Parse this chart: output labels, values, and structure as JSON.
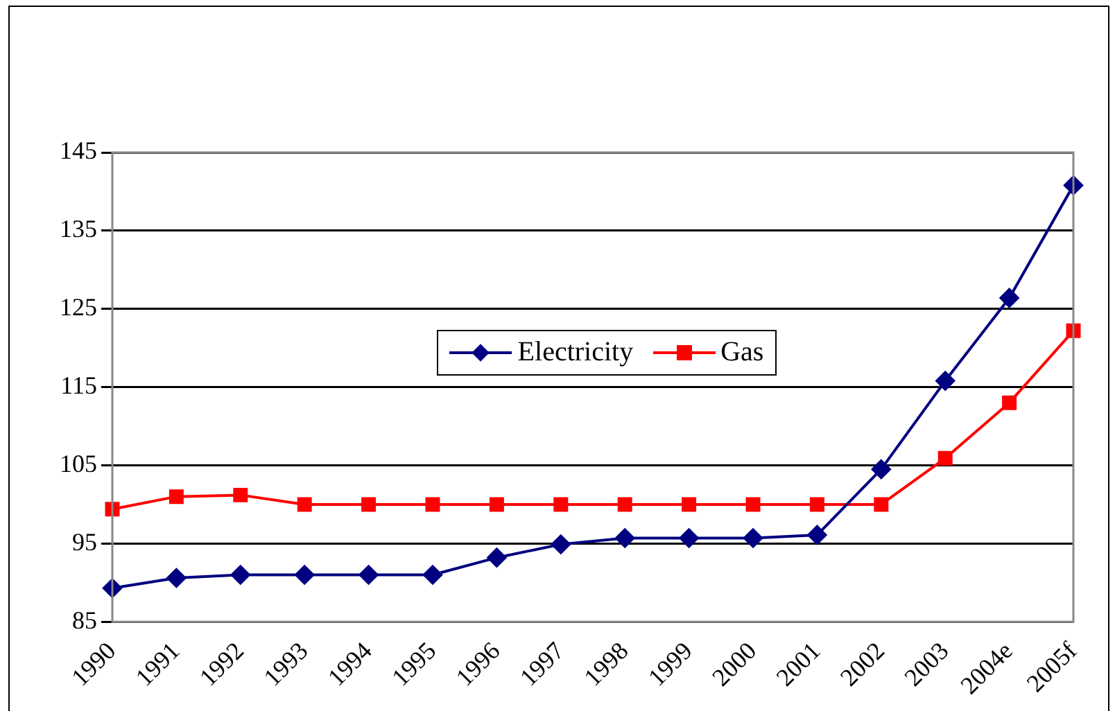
{
  "chart_data": {
    "type": "line",
    "categories": [
      "1990",
      "1991",
      "1992",
      "1993",
      "1994",
      "1995",
      "1996",
      "1997",
      "1998",
      "1999",
      "2000",
      "2001",
      "2002",
      "2003",
      "2004e",
      "2005f"
    ],
    "series": [
      {
        "name": "Electricity",
        "color": "#000080",
        "marker": "diamond",
        "values": [
          89.3,
          90.6,
          91.0,
          91.0,
          91.0,
          91.0,
          93.2,
          94.9,
          95.7,
          95.7,
          95.7,
          96.1,
          104.5,
          115.8,
          126.4,
          140.8
        ]
      },
      {
        "name": "Gas",
        "color": "#ff0000",
        "marker": "square",
        "values": [
          99.4,
          101.0,
          101.2,
          100,
          100,
          100,
          100,
          100,
          100,
          100,
          100,
          100,
          100,
          105.9,
          113.0,
          122.2
        ]
      }
    ],
    "ylim": [
      85,
      145
    ],
    "yticks": [
      85,
      95,
      105,
      115,
      125,
      135,
      145
    ],
    "grid": "y",
    "legend": "center",
    "line_style": "solid"
  }
}
